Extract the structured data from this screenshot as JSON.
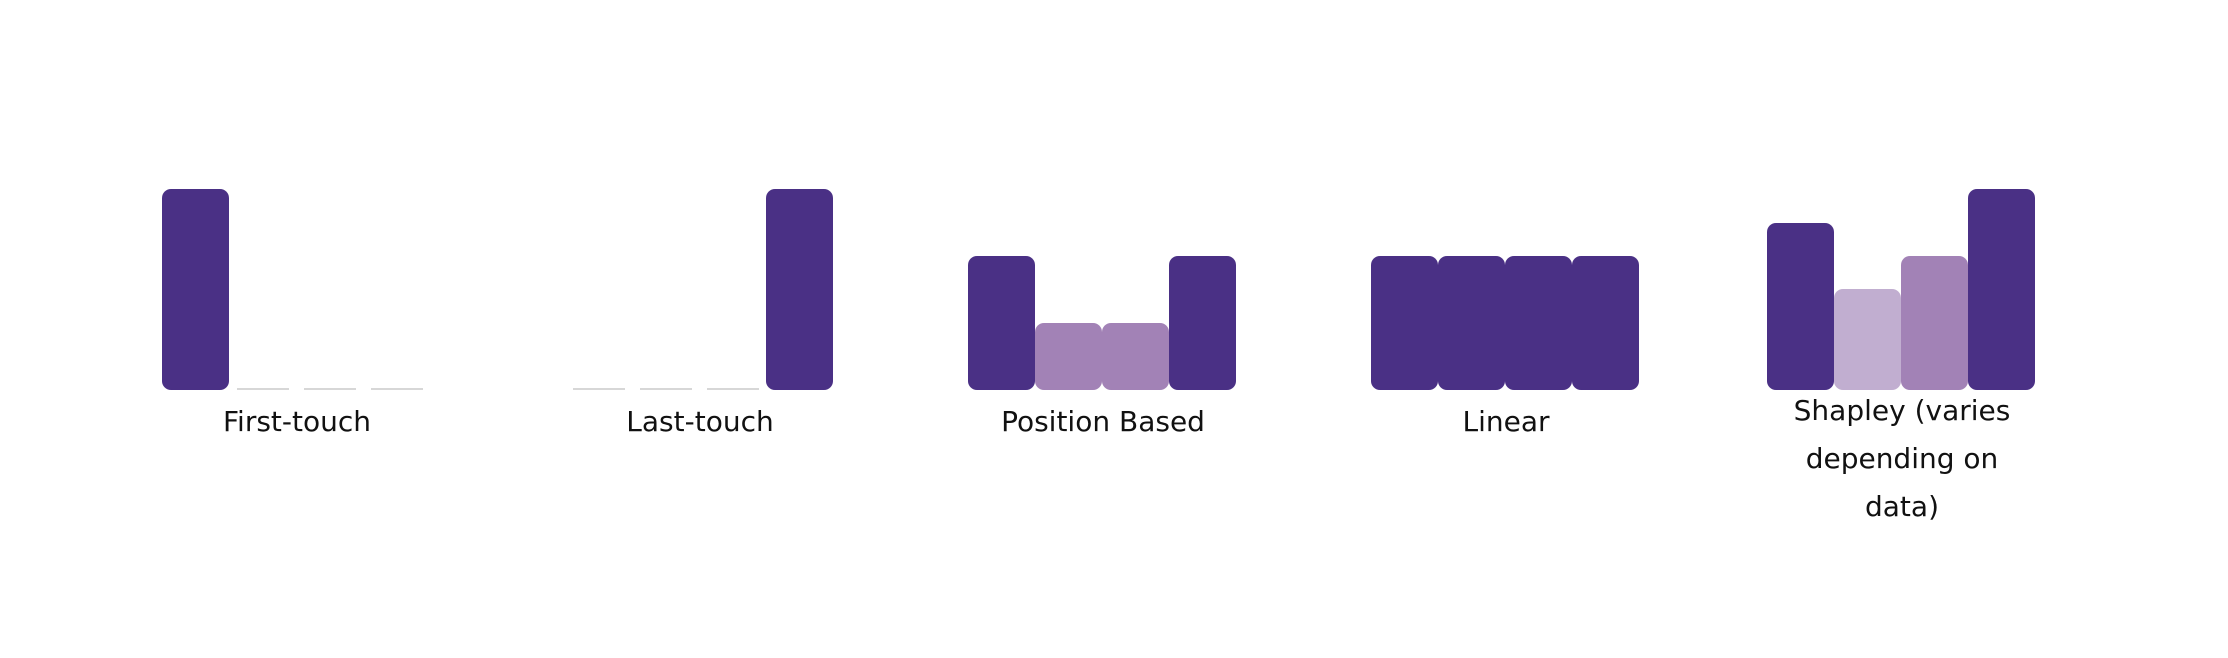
{
  "colors": {
    "dark": "#4a3085",
    "medium": "#a282b6",
    "light": "#c1aed0",
    "empty": "#d7d7d7"
  },
  "models": [
    {
      "label": "First-touch",
      "credits": [
        1.0,
        0,
        0,
        0
      ],
      "shades": [
        "dark",
        "empty",
        "empty",
        "empty"
      ]
    },
    {
      "label": "Last-touch",
      "credits": [
        0,
        0,
        0,
        1.0
      ],
      "shades": [
        "empty",
        "empty",
        "empty",
        "dark"
      ]
    },
    {
      "label": "Position Based",
      "credits": [
        0.667,
        0.333,
        0.333,
        0.667
      ],
      "shades": [
        "dark",
        "medium",
        "medium",
        "dark"
      ]
    },
    {
      "label": "Linear",
      "credits": [
        0.667,
        0.667,
        0.667,
        0.667
      ],
      "shades": [
        "dark",
        "dark",
        "dark",
        "dark"
      ]
    },
    {
      "label": "Shapley (varies depending on data)",
      "credits": [
        0.833,
        0.5,
        0.667,
        1.0
      ],
      "shades": [
        "dark",
        "light",
        "medium",
        "dark"
      ]
    }
  ]
}
